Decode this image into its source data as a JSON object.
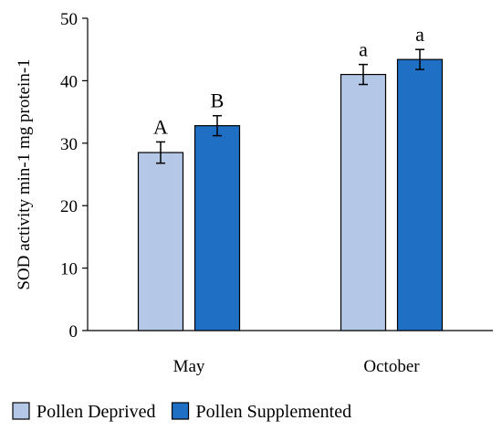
{
  "chart_data": {
    "type": "bar",
    "title": "",
    "xlabel": "",
    "ylabel": "SOD activity min-1 mg protein-1",
    "ylim": [
      0,
      50
    ],
    "yticks": [
      0,
      10,
      20,
      30,
      40,
      50
    ],
    "categories": [
      "May",
      "October"
    ],
    "series": [
      {
        "name": "Pollen Deprived",
        "color": "#b4c7e7",
        "values": [
          28.5,
          41.0
        ],
        "errors": [
          1.7,
          1.6
        ],
        "labels": [
          "A",
          "a"
        ]
      },
      {
        "name": "Pollen Supplemented",
        "color": "#1f6fc5",
        "values": [
          32.8,
          43.4
        ],
        "errors": [
          1.6,
          1.6
        ],
        "labels": [
          "B",
          "a"
        ]
      }
    ],
    "grid": false,
    "legend_position": "bottom"
  }
}
